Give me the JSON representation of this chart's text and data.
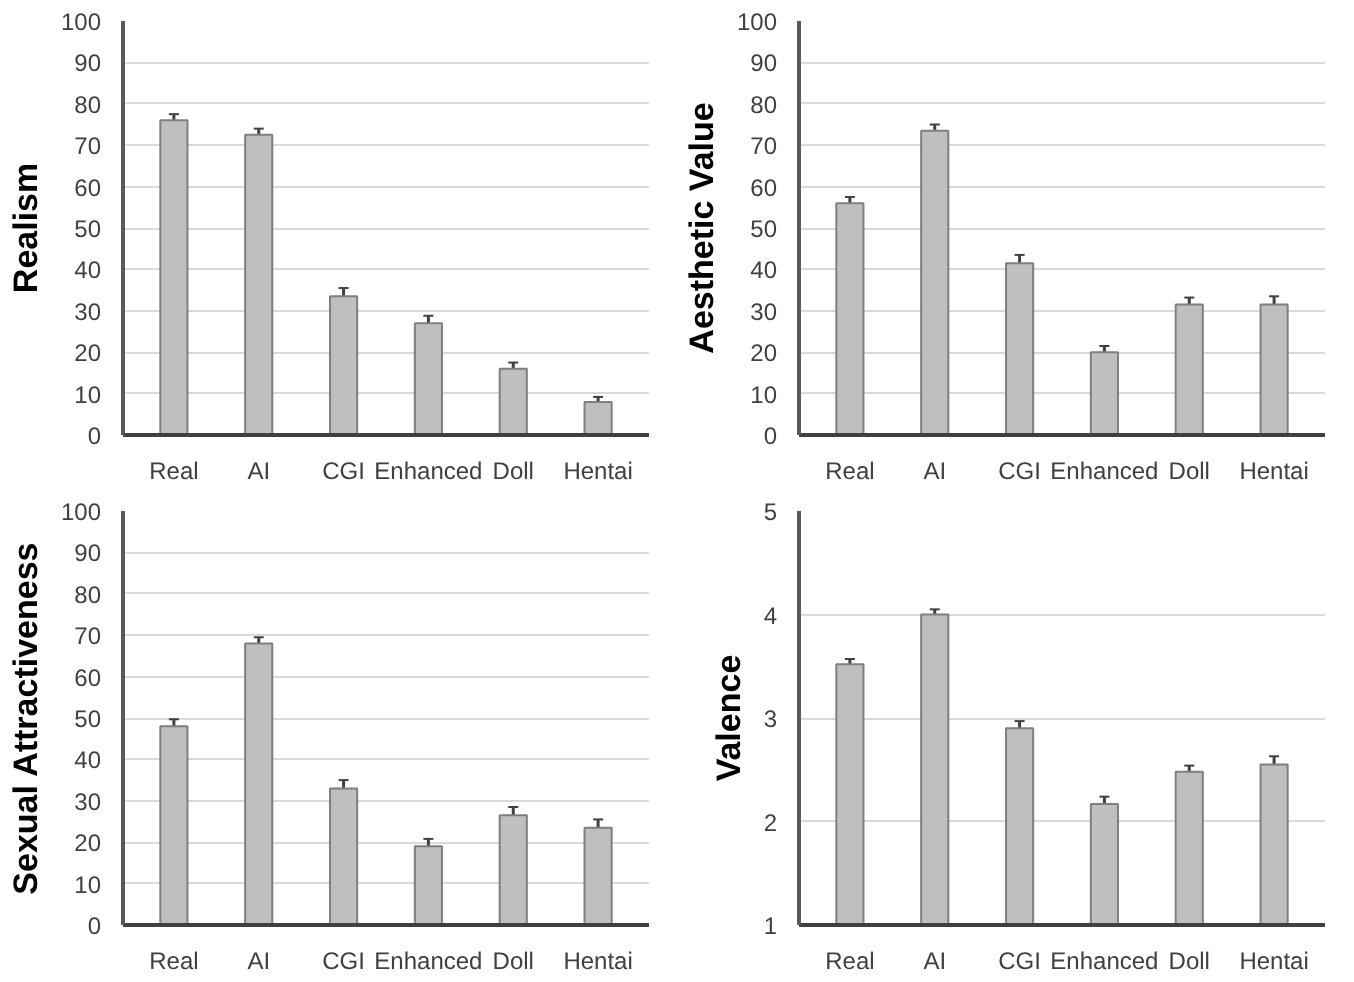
{
  "chart_data": [
    {
      "type": "bar",
      "ylabel": "Realism",
      "categories": [
        "Real",
        "AI",
        "CGI",
        "Enhanced",
        "Doll",
        "Hentai"
      ],
      "values": [
        76,
        72.5,
        33.5,
        27,
        16,
        8
      ],
      "errors": [
        1.5,
        1.5,
        2,
        1.8,
        1.5,
        1.2
      ],
      "color": "#bfbfbf",
      "ylim": [
        0,
        100
      ],
      "yticks": [
        0,
        10,
        20,
        30,
        40,
        50,
        60,
        70,
        80,
        90,
        100
      ],
      "grid": "y"
    },
    {
      "type": "bar",
      "ylabel": "Aesthetic Value",
      "categories": [
        "Real",
        "AI",
        "CGI",
        "Enhanced",
        "Doll",
        "Hentai"
      ],
      "values": [
        56,
        73.5,
        41.5,
        20,
        31.5,
        31.5
      ],
      "errors": [
        1.5,
        1.5,
        2,
        1.5,
        1.7,
        2
      ],
      "color": "#bfbfbf",
      "ylim": [
        0,
        100
      ],
      "yticks": [
        0,
        10,
        20,
        30,
        40,
        50,
        60,
        70,
        80,
        90,
        100
      ],
      "grid": "y"
    },
    {
      "type": "bar",
      "ylabel": "Sexual Attractiveness",
      "categories": [
        "Real",
        "AI",
        "CGI",
        "Enhanced",
        "Doll",
        "Hentai"
      ],
      "values": [
        48,
        68,
        33,
        19,
        26.5,
        23.5
      ],
      "errors": [
        1.7,
        1.5,
        2,
        1.8,
        2,
        2
      ],
      "color": "#bfbfbf",
      "ylim": [
        0,
        100
      ],
      "yticks": [
        0,
        10,
        20,
        30,
        40,
        50,
        60,
        70,
        80,
        90,
        100
      ],
      "grid": "y"
    },
    {
      "type": "bar",
      "ylabel": "Valence",
      "categories": [
        "Real",
        "AI",
        "CGI",
        "Enhanced",
        "Doll",
        "Hentai"
      ],
      "values": [
        3.52,
        4.0,
        2.9,
        2.17,
        2.48,
        2.55
      ],
      "errors": [
        0.05,
        0.05,
        0.07,
        0.07,
        0.06,
        0.08
      ],
      "color": "#bfbfbf",
      "ylim": [
        1,
        5
      ],
      "yticks": [
        1,
        2,
        3,
        4,
        5
      ],
      "grid": "y"
    }
  ]
}
